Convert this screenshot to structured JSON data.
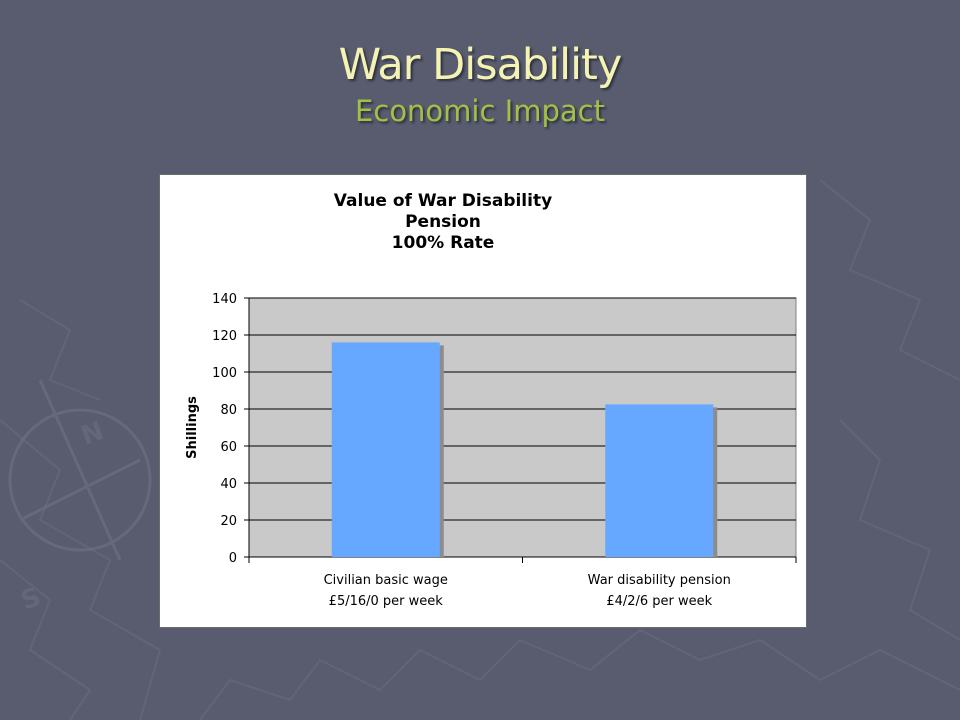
{
  "slide": {
    "title": "War Disability",
    "subtitle": "Economic Impact"
  },
  "colors": {
    "background": "#585c6e",
    "title": "#f4f3b4",
    "subtitle": "#a2c045",
    "plot_area": "#c9c9c9",
    "bar": "#66a8ff",
    "bar_shadow": "#8c8c8c"
  },
  "chart_data": {
    "type": "bar",
    "title_lines": [
      "Value of War Disability",
      "Pension",
      "100% Rate"
    ],
    "ylabel": "Shillings",
    "xlabel": "",
    "ylim": [
      0,
      140
    ],
    "yticks": [
      0,
      20,
      40,
      60,
      80,
      100,
      120,
      140
    ],
    "grid": true,
    "legend": false,
    "categories": [
      {
        "line1": "Civilian basic wage",
        "line2": "£5/16/0 per week"
      },
      {
        "line1": "War disability pension",
        "line2": "£4/2/6 per week"
      }
    ],
    "values": [
      116,
      82.5
    ]
  }
}
